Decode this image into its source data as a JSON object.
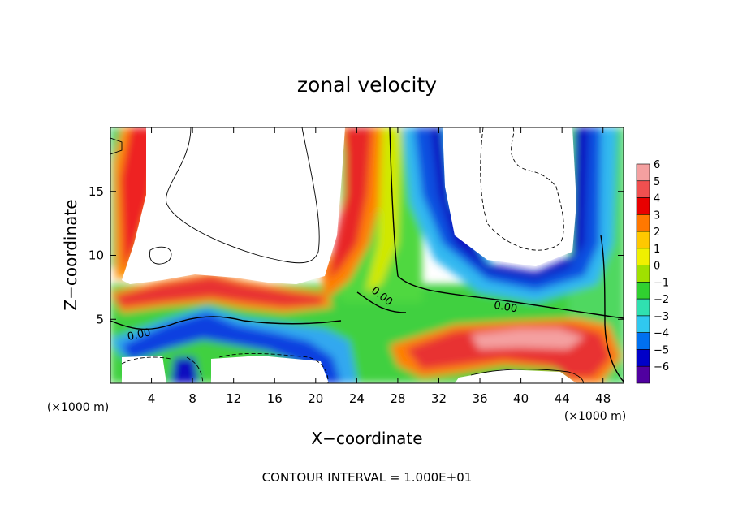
{
  "chart_data": {
    "type": "heatmap",
    "title": "zonal velocity",
    "xlabel": "X−coordinate",
    "ylabel": "Z−coordinate",
    "x_unit_left": "(×1000 m)",
    "x_unit_right": "(×1000 m)",
    "xlim": [
      0,
      50
    ],
    "ylim": [
      0,
      20
    ],
    "x_ticks": [
      4,
      8,
      12,
      16,
      20,
      24,
      28,
      32,
      36,
      40,
      44,
      48
    ],
    "x_tick_labels": [
      "4",
      "8",
      "12",
      "16",
      "20",
      "24",
      "28",
      "32",
      "36",
      "40",
      "44",
      "48"
    ],
    "y_ticks": [
      5,
      10,
      15
    ],
    "y_tick_labels": [
      "5",
      "10",
      "15"
    ],
    "colorbar": {
      "ticks": [
        6,
        5,
        4,
        3,
        2,
        1,
        0,
        -1,
        -2,
        -3,
        -4,
        -5,
        -6
      ],
      "tick_labels": [
        "6",
        "5",
        "4",
        "3",
        "2",
        "1",
        "0",
        "−1",
        "−2",
        "−3",
        "−4",
        "−5",
        "−6"
      ],
      "colors": [
        "#f4a0a0",
        "#f05050",
        "#e80000",
        "#ff7800",
        "#ffc800",
        "#f0f000",
        "#a0e000",
        "#30d030",
        "#30e0b0",
        "#30c8f0",
        "#0070f0",
        "#0000c8",
        "#5000a0"
      ]
    },
    "contour_labels": [
      "0.00",
      "0.00",
      "0.00"
    ],
    "footer": "CONTOUR INTERVAL = 1.000E+01"
  }
}
